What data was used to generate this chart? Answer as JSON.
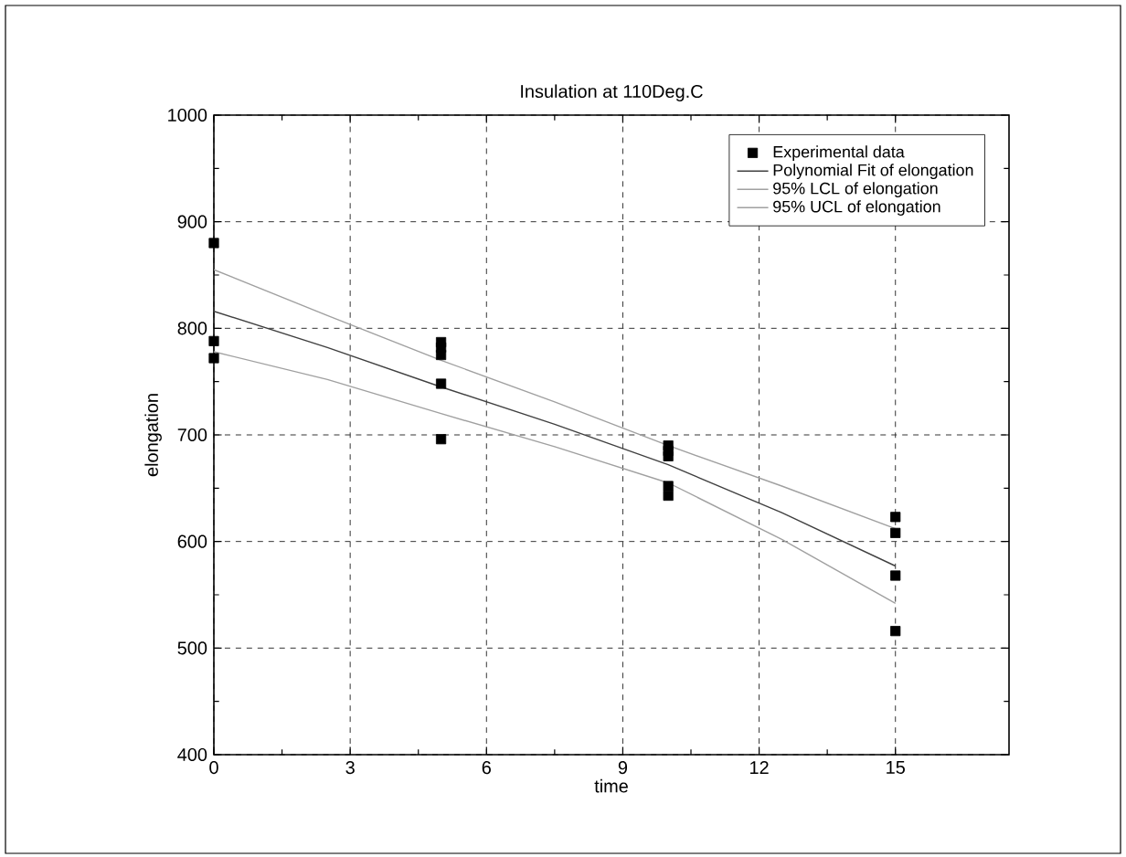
{
  "chart_data": {
    "type": "line",
    "title": "Insulation at 110Deg.C",
    "xlabel": "time",
    "ylabel": "elongation",
    "xlim": [
      0,
      17.5
    ],
    "xticks": [
      0,
      3,
      6,
      9,
      12,
      15
    ],
    "ylim": [
      400,
      1000
    ],
    "yticks": [
      400,
      500,
      600,
      700,
      800,
      900,
      1000
    ],
    "grid": true,
    "legend": "top right",
    "series": [
      {
        "name": "Experimental data",
        "type": "scatter",
        "marker": "square",
        "color": "#000000",
        "x": [
          0,
          0,
          0,
          5,
          5,
          5,
          5,
          5,
          10,
          10,
          10,
          10,
          10,
          15,
          15,
          15,
          15
        ],
        "values": [
          880,
          788,
          772,
          787,
          782,
          775,
          748,
          696,
          690,
          685,
          680,
          652,
          643,
          623,
          608,
          568,
          516
        ]
      },
      {
        "name": "Polynomial Fit of elongation",
        "color": "#404040",
        "x": [
          0,
          2.5,
          5,
          7.5,
          10,
          12.5,
          15
        ],
        "values": [
          816,
          782,
          745,
          710,
          672,
          627,
          577
        ]
      },
      {
        "name": "95% LCL of elongation",
        "color": "#a0a0a0",
        "x": [
          0,
          2.5,
          5,
          7.5,
          10,
          12.5,
          15
        ],
        "values": [
          778,
          752,
          720,
          689,
          655,
          602,
          542
        ]
      },
      {
        "name": "95% UCL of elongation",
        "color": "#a0a0a0",
        "x": [
          0,
          2.5,
          5,
          7.5,
          10,
          12.5,
          15
        ],
        "values": [
          855,
          812,
          770,
          731,
          690,
          652,
          612
        ]
      }
    ]
  }
}
